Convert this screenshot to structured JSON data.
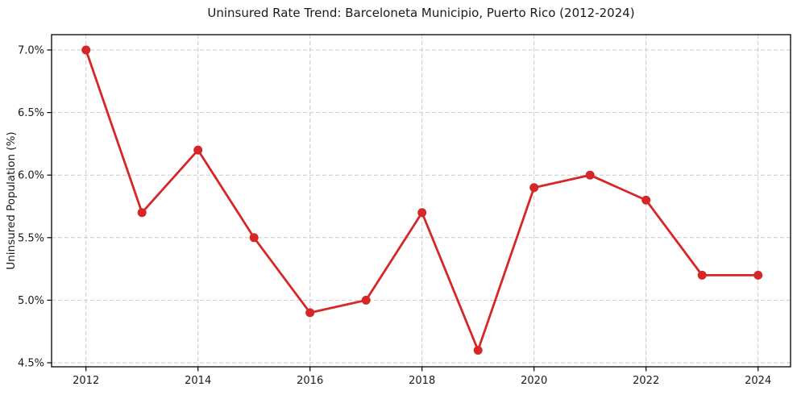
{
  "figure": {
    "title": "Uninsured Rate Trend: Barceloneta Municipio, Puerto Rico (2012-2024)"
  },
  "chart_data": {
    "type": "line",
    "title": "Uninsured Rate Trend: Barceloneta Municipio, Puerto Rico (2012-2024)",
    "xlabel": "",
    "ylabel": "Uninsured Population (%)",
    "x": [
      2012,
      2013,
      2014,
      2015,
      2016,
      2017,
      2018,
      2019,
      2020,
      2021,
      2022,
      2023,
      2024
    ],
    "values": [
      7.0,
      5.7,
      6.2,
      5.5,
      4.9,
      5.0,
      5.7,
      4.6,
      5.9,
      6.0,
      5.8,
      5.2,
      5.2
    ],
    "xticks": [
      2012,
      2014,
      2016,
      2018,
      2020,
      2022,
      2024
    ],
    "xtick_labels": [
      "2012",
      "2014",
      "2016",
      "2018",
      "2020",
      "2022",
      "2024"
    ],
    "yticks": [
      4.5,
      5.0,
      5.5,
      6.0,
      6.5,
      7.0
    ],
    "ytick_labels": [
      "4.5%",
      "5.0%",
      "5.5%",
      "6.0%",
      "6.5%",
      "7.0%"
    ],
    "ylim": [
      4.5,
      7.0
    ],
    "grid": true,
    "grid_style": "dashed",
    "legend": false,
    "marker": "circle",
    "colors": {
      "line": "#d62728",
      "marker": "#d62728",
      "grid": "#c9c9c9",
      "spine": "#000000",
      "text": "#1a1a1a",
      "background": "#ffffff"
    }
  }
}
